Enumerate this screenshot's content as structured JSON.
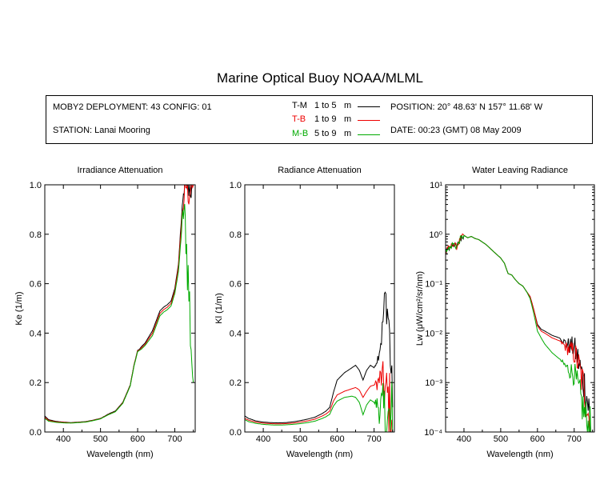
{
  "title": "Marine Optical Buoy NOAA/MLML",
  "info": {
    "deployment": "MOBY2 DEPLOYMENT: 43 CONFIG: 01",
    "station": "STATION: Lanai Mooring",
    "position": "POSITION: 20° 48.63' N   157° 11.68' W",
    "date": "DATE: 00:23 (GMT) 08 May 2009"
  },
  "legend": [
    {
      "code": "T-M",
      "range": "1 to 5",
      "unit": "m",
      "color": "#000000"
    },
    {
      "code": "T-B",
      "range": "1 to 9",
      "unit": "m",
      "color": "#ee0000"
    },
    {
      "code": "M-B",
      "range": "5 to 9",
      "unit": "m",
      "color": "#00aa00"
    }
  ],
  "chart_data": [
    {
      "type": "line",
      "title": "Irradiance Attenuation",
      "xlabel": "Wavelength (nm)",
      "ylabel": "Ke  (1/m)",
      "xlim": [
        350,
        755
      ],
      "ylim": [
        0,
        1
      ],
      "xticks": [
        400,
        500,
        600,
        700
      ],
      "yticks": [
        0,
        0.2,
        0.4,
        0.6,
        0.8,
        1.0
      ],
      "ytick_labels": [
        "0.0",
        "0.2",
        "0.4",
        "0.6",
        "0.8",
        "1.0"
      ],
      "yscale": "linear",
      "noise_from": 715,
      "series": [
        {
          "name": "T-M",
          "color": "#000000",
          "x": [
            350,
            360,
            380,
            400,
            420,
            440,
            460,
            480,
            500,
            510,
            520,
            540,
            560,
            580,
            590,
            600,
            605,
            610,
            620,
            630,
            640,
            650,
            660,
            670,
            680,
            690,
            700,
            710,
            715,
            720,
            725,
            730,
            740,
            750
          ],
          "y": [
            0.065,
            0.05,
            0.043,
            0.04,
            0.038,
            0.04,
            0.042,
            0.048,
            0.055,
            0.063,
            0.072,
            0.085,
            0.12,
            0.19,
            0.27,
            0.33,
            0.335,
            0.345,
            0.36,
            0.385,
            0.41,
            0.45,
            0.49,
            0.505,
            0.515,
            0.53,
            0.58,
            0.68,
            0.8,
            0.9,
            0.98,
            1.0,
            1.0,
            1.0
          ]
        },
        {
          "name": "T-B",
          "color": "#ee0000",
          "x": [
            350,
            360,
            380,
            400,
            420,
            440,
            460,
            480,
            500,
            510,
            520,
            540,
            560,
            580,
            590,
            600,
            605,
            610,
            620,
            630,
            640,
            650,
            660,
            670,
            680,
            690,
            700,
            710,
            715,
            720,
            725,
            730,
            740,
            750
          ],
          "y": [
            0.06,
            0.047,
            0.041,
            0.039,
            0.037,
            0.039,
            0.041,
            0.047,
            0.054,
            0.062,
            0.07,
            0.083,
            0.118,
            0.188,
            0.268,
            0.328,
            0.332,
            0.34,
            0.355,
            0.378,
            0.4,
            0.44,
            0.48,
            0.495,
            0.505,
            0.52,
            0.57,
            0.67,
            0.78,
            0.88,
            0.95,
            1.0,
            1.0,
            1.0
          ]
        },
        {
          "name": "M-B",
          "color": "#00aa00",
          "x": [
            350,
            360,
            380,
            400,
            420,
            440,
            460,
            480,
            500,
            510,
            520,
            540,
            560,
            580,
            590,
            600,
            605,
            610,
            620,
            630,
            640,
            650,
            660,
            670,
            680,
            690,
            700,
            710,
            715,
            720,
            725,
            730,
            740,
            750
          ],
          "y": [
            0.055,
            0.044,
            0.039,
            0.037,
            0.036,
            0.038,
            0.04,
            0.046,
            0.053,
            0.061,
            0.069,
            0.082,
            0.116,
            0.186,
            0.265,
            0.325,
            0.33,
            0.335,
            0.35,
            0.37,
            0.39,
            0.43,
            0.47,
            0.485,
            0.495,
            0.51,
            0.56,
            0.65,
            0.75,
            0.85,
            0.9,
            0.8,
            0.5,
            0.2
          ]
        }
      ]
    },
    {
      "type": "line",
      "title": "Radiance Attenuation",
      "xlabel": "Wavelength (nm)",
      "ylabel": "Kl  (1/m)",
      "xlim": [
        350,
        755
      ],
      "ylim": [
        0,
        1
      ],
      "xticks": [
        400,
        500,
        600,
        700
      ],
      "yticks": [
        0,
        0.2,
        0.4,
        0.6,
        0.8,
        1.0
      ],
      "ytick_labels": [
        "0.0",
        "0.2",
        "0.4",
        "0.6",
        "0.8",
        "1.0"
      ],
      "yscale": "linear",
      "noise_from": 700,
      "series": [
        {
          "name": "T-M",
          "color": "#000000",
          "x": [
            350,
            360,
            380,
            400,
            420,
            440,
            460,
            480,
            500,
            520,
            540,
            560,
            570,
            580,
            590,
            600,
            620,
            640,
            650,
            660,
            670,
            680,
            690,
            700,
            710,
            720,
            730,
            740,
            750
          ],
          "y": [
            0.065,
            0.055,
            0.045,
            0.04,
            0.038,
            0.037,
            0.038,
            0.041,
            0.046,
            0.052,
            0.06,
            0.075,
            0.085,
            0.1,
            0.16,
            0.21,
            0.24,
            0.26,
            0.27,
            0.25,
            0.21,
            0.25,
            0.27,
            0.26,
            0.3,
            0.38,
            0.55,
            0.45,
            0.1
          ]
        },
        {
          "name": "T-B",
          "color": "#ee0000",
          "x": [
            350,
            360,
            380,
            400,
            420,
            440,
            460,
            480,
            500,
            520,
            540,
            560,
            570,
            580,
            590,
            600,
            620,
            640,
            650,
            660,
            670,
            680,
            690,
            700,
            710,
            720,
            730,
            740,
            750
          ],
          "y": [
            0.055,
            0.048,
            0.04,
            0.036,
            0.034,
            0.033,
            0.034,
            0.036,
            0.04,
            0.045,
            0.052,
            0.065,
            0.073,
            0.085,
            0.125,
            0.15,
            0.165,
            0.175,
            0.18,
            0.17,
            0.14,
            0.165,
            0.185,
            0.19,
            0.2,
            0.22,
            0.17,
            0.12,
            0.05
          ]
        },
        {
          "name": "M-B",
          "color": "#00aa00",
          "x": [
            350,
            360,
            380,
            400,
            420,
            440,
            460,
            480,
            500,
            520,
            540,
            560,
            570,
            580,
            590,
            600,
            620,
            640,
            650,
            660,
            670,
            680,
            690,
            700,
            710,
            720,
            730,
            740,
            750
          ],
          "y": [
            0.05,
            0.042,
            0.035,
            0.031,
            0.029,
            0.028,
            0.029,
            0.031,
            0.034,
            0.038,
            0.044,
            0.055,
            0.062,
            0.072,
            0.105,
            0.125,
            0.14,
            0.145,
            0.14,
            0.12,
            0.07,
            0.11,
            0.13,
            0.12,
            0.11,
            0.09,
            0.06,
            0.02,
            0.0
          ]
        }
      ]
    },
    {
      "type": "line",
      "title": "Water Leaving Radiance",
      "xlabel": "Wavelength (nm)",
      "ylabel": "Lw  (μW/cm²/sr/nm)",
      "xlim": [
        350,
        755
      ],
      "ylim": [
        0.0001,
        10
      ],
      "xticks": [
        400,
        500,
        600,
        700
      ],
      "yticks": [
        0.0001,
        0.001,
        0.01,
        0.1,
        1,
        10
      ],
      "ytick_labels": [
        "10⁻⁴",
        "10⁻³",
        "10⁻²",
        "10⁻¹",
        "10⁰",
        "10¹"
      ],
      "yscale": "log",
      "noise_from": 660,
      "series": [
        {
          "name": "T-M",
          "color": "#000000",
          "x": [
            350,
            355,
            360,
            370,
            380,
            390,
            400,
            410,
            420,
            430,
            440,
            460,
            480,
            500,
            510,
            520,
            530,
            540,
            550,
            560,
            570,
            580,
            590,
            600,
            610,
            620,
            640,
            660,
            680,
            700,
            710,
            720,
            730,
            740,
            745
          ],
          "y": [
            0.4,
            0.55,
            0.5,
            0.65,
            0.55,
            0.8,
            0.95,
            0.85,
            0.9,
            0.82,
            0.78,
            0.62,
            0.45,
            0.33,
            0.26,
            0.16,
            0.15,
            0.12,
            0.1,
            0.09,
            0.07,
            0.055,
            0.03,
            0.015,
            0.012,
            0.011,
            0.009,
            0.008,
            0.006,
            0.005,
            0.003,
            0.0015,
            0.0008,
            0.0003,
            0.0001
          ]
        },
        {
          "name": "T-B",
          "color": "#ee0000",
          "x": [
            350,
            355,
            360,
            370,
            380,
            390,
            400,
            410,
            420,
            430,
            440,
            460,
            480,
            500,
            510,
            520,
            530,
            540,
            550,
            560,
            570,
            580,
            590,
            600,
            610,
            620,
            640,
            660,
            680,
            700,
            710,
            720,
            730,
            740,
            745
          ],
          "y": [
            0.4,
            0.55,
            0.5,
            0.65,
            0.55,
            0.8,
            0.95,
            0.85,
            0.9,
            0.82,
            0.78,
            0.62,
            0.45,
            0.33,
            0.26,
            0.16,
            0.15,
            0.12,
            0.1,
            0.09,
            0.07,
            0.055,
            0.03,
            0.014,
            0.011,
            0.01,
            0.008,
            0.007,
            0.005,
            0.004,
            0.0025,
            0.0012,
            0.0006,
            0.0002,
            0.0001
          ]
        },
        {
          "name": "M-B",
          "color": "#00aa00",
          "x": [
            350,
            355,
            360,
            370,
            380,
            390,
            400,
            410,
            420,
            430,
            440,
            460,
            480,
            500,
            510,
            520,
            530,
            540,
            550,
            560,
            570,
            580,
            590,
            600,
            610,
            620,
            640,
            660,
            680,
            700,
            710,
            720,
            730,
            740,
            745
          ],
          "y": [
            0.4,
            0.55,
            0.5,
            0.65,
            0.55,
            0.8,
            0.95,
            0.85,
            0.9,
            0.82,
            0.78,
            0.62,
            0.45,
            0.33,
            0.26,
            0.16,
            0.15,
            0.12,
            0.1,
            0.09,
            0.07,
            0.05,
            0.025,
            0.011,
            0.008,
            0.006,
            0.004,
            0.003,
            0.002,
            0.0015,
            0.0008,
            0.0004,
            0.0002,
            0.0001,
            0.0001
          ]
        }
      ]
    }
  ]
}
